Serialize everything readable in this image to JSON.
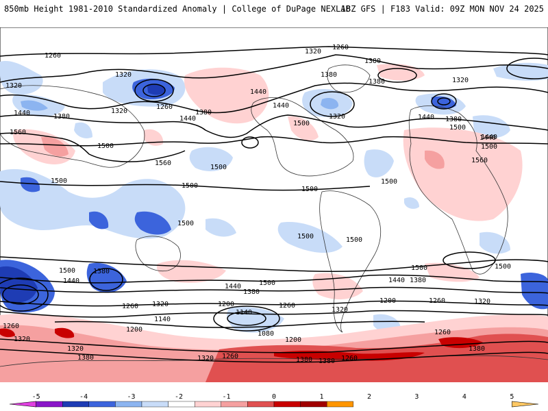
{
  "header": {
    "title_left": "850mb Height 1981-2010 Standardized Anomaly | College of DuPage NEXLAB",
    "title_right": "18Z GFS | F183 Valid: 09Z MON NOV 24 2025"
  },
  "contour_labels": {
    "l1260a": "1260",
    "l1260b": "1260",
    "l1260c": "1260",
    "l1260d": "1260",
    "l1260e": "1260",
    "l1260f": "1260",
    "l1260g": "1260",
    "l1260h": "1260",
    "l1260i": "1260",
    "l1260j": "1260",
    "l1320a": "1320",
    "l1320b": "1320",
    "l1320c": "1320",
    "l1320d": "1320",
    "l1320e": "1320",
    "l1320f": "1320",
    "l1320g": "1320",
    "l1320h": "1320",
    "l1320i": "1320",
    "l1320j": "1320",
    "l1320k": "1320",
    "l1320l": "1320",
    "l1380a": "1380",
    "l1380b": "1380",
    "l1380c": "1380",
    "l1380d": "1380",
    "l1380e": "1380",
    "l1380f": "1380",
    "l1380g": "1380",
    "l1380h": "1380",
    "l1380i": "1380",
    "l1380j": "1380",
    "l1380k": "1380",
    "l1380l": "1380",
    "l1380m": "1380",
    "l1440a": "1440",
    "l1440b": "1440",
    "l1440c": "1440",
    "l1440d": "1440",
    "l1440e": "1440",
    "l1440f": "1440",
    "l1440g": "1440",
    "l1440h": "1440",
    "l1440i": "1440",
    "l1440j": "1440",
    "l1500a": "1500",
    "l1500b": "1500",
    "l1500c": "1500",
    "l1500d": "1500",
    "l1500e": "1500",
    "l1500f": "1500",
    "l1500g": "1500",
    "l1500h": "1500",
    "l1500i": "1500",
    "l1500j": "1500",
    "l1500k": "1500",
    "l1500l": "1500",
    "l1500m": "1500",
    "l1500n": "1500",
    "l1500o": "1500",
    "l1500p": "1500",
    "l1560a": "1560",
    "l1560b": "1560",
    "l1560c": "1560",
    "l1200a": "1200",
    "l1200b": "1200",
    "l1200c": "1200",
    "l1200d": "1200",
    "l1140a": "1140",
    "l1140b": "1140",
    "l1080a": "1080"
  },
  "colorbar": {
    "ticks": [
      "-5",
      "-4",
      "-3",
      "-2",
      "-1",
      "0",
      "1",
      "2",
      "3",
      "4",
      "5"
    ],
    "colors": [
      "#e040e0",
      "#8a16c8",
      "#1e3cb4",
      "#3c64dc",
      "#8cb4f0",
      "#c8dcf8",
      "#ffffff",
      "#ffd2d2",
      "#f5a0a0",
      "#e05050",
      "#c80000",
      "#a00000",
      "#ff9600",
      "#ffc864"
    ]
  }
}
